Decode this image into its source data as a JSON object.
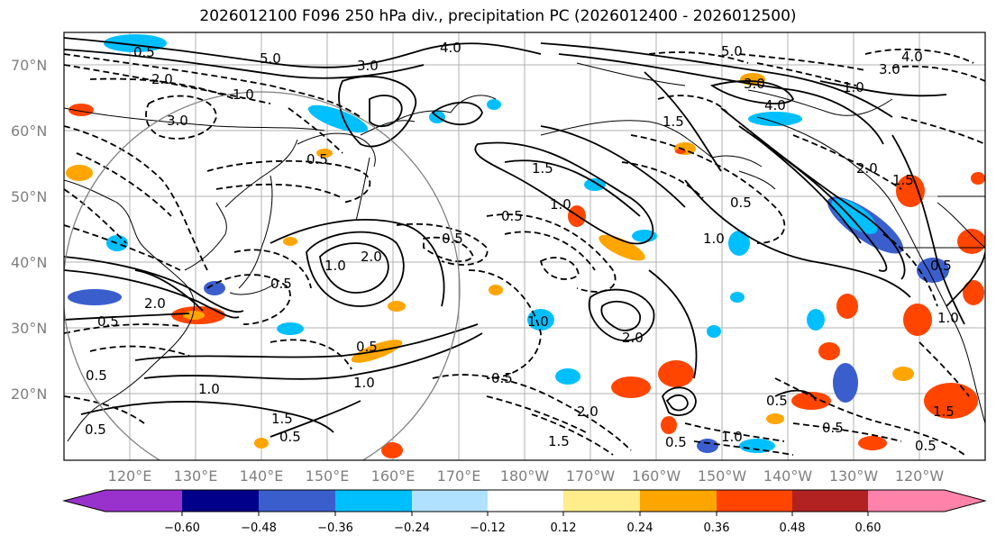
{
  "title": "2026012100 F096 250 hPa div., precipitation PC (2026012400 - 2026012500)",
  "map": {
    "lat_labels": [
      "70°N",
      "60°N",
      "50°N",
      "40°N",
      "30°N",
      "20°N"
    ],
    "lon_labels": [
      "120°E",
      "130°E",
      "140°E",
      "150°E",
      "160°E",
      "170°E",
      "180°W",
      "170°W",
      "160°W",
      "150°W",
      "140°W",
      "130°W",
      "120°W"
    ],
    "contour_labels": [
      "0.5",
      "2.0",
      "3.0",
      "5.0",
      "4.0",
      "3.0",
      "1.0",
      "2.0",
      "1.5",
      "1.0",
      "0.5",
      "1.5",
      "1.0",
      "0.5",
      "0.5",
      "2.0",
      "0.5",
      "0.5",
      "1.0",
      "0.5",
      "1.0",
      "2.0",
      "1.0",
      "1.5",
      "0.5",
      "1.5",
      "0.5",
      "2.0",
      "0.5",
      "1.0",
      "5.0",
      "3.0",
      "4.0",
      "1.0",
      "3.0",
      "4.0",
      "2.0",
      "1.5",
      "0.5",
      "1.0",
      "0.5",
      "0.5",
      "0.5",
      "1.5",
      "0.5",
      "1.0",
      "0.5",
      "0.5"
    ]
  },
  "colorbar": {
    "ticks": [
      "−0.60",
      "−0.48",
      "−0.36",
      "−0.24",
      "−0.12",
      "0.12",
      "0.24",
      "0.36",
      "0.48",
      "0.60"
    ],
    "colors": [
      "#9932cc",
      "#00008b",
      "#3a5fcd",
      "#00bfff",
      "#b0e2ff",
      "#ffffff",
      "#ffec8b",
      "#ffa500",
      "#ff4500",
      "#b22222",
      "#ff82ab"
    ]
  }
}
